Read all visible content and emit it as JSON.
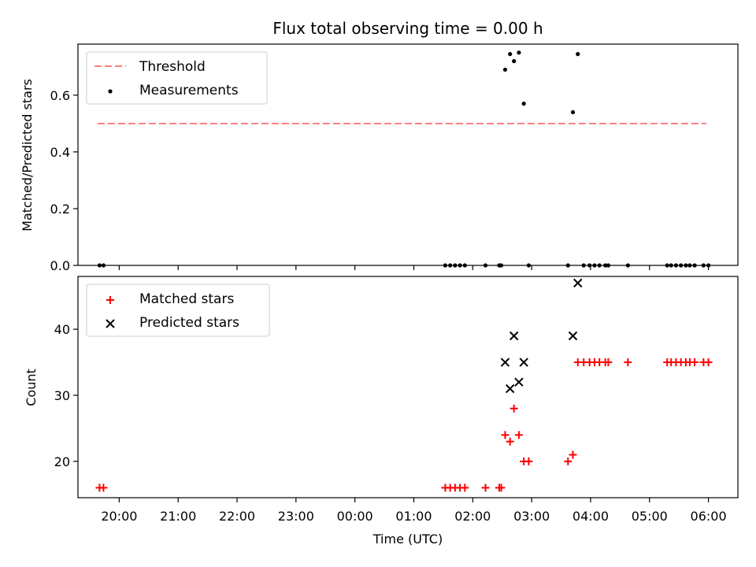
{
  "chart_data": [
    {
      "type": "scatter",
      "title": "Flux total observing time = 0.00 h",
      "ylabel": "Matched/Predicted stars",
      "xlabel": "",
      "xlim": [
        "19:18",
        "06:30"
      ],
      "ylim": [
        0,
        0.78
      ],
      "yticks": [
        0.0,
        0.2,
        0.4,
        0.6
      ],
      "ytick_labels": [
        "0.0",
        "0.2",
        "0.4",
        "0.6"
      ],
      "xticks": [
        "20:00",
        "21:00",
        "22:00",
        "23:00",
        "00:00",
        "01:00",
        "02:00",
        "03:00",
        "04:00",
        "05:00",
        "06:00"
      ],
      "legend": {
        "position": "upper-left",
        "entries": [
          "Threshold",
          "Measurements"
        ]
      },
      "threshold": {
        "name": "Threshold",
        "value": 0.5,
        "x_range": [
          "19:38",
          "05:58"
        ],
        "color": "#ff7f7f"
      },
      "series": [
        {
          "name": "Measurements",
          "marker": "dot",
          "color": "#000000",
          "points": [
            {
              "x": "19:40",
              "y": 0
            },
            {
              "x": "19:44",
              "y": 0
            },
            {
              "x": "01:32",
              "y": 0
            },
            {
              "x": "01:37",
              "y": 0
            },
            {
              "x": "01:42",
              "y": 0
            },
            {
              "x": "01:47",
              "y": 0
            },
            {
              "x": "01:52",
              "y": 0
            },
            {
              "x": "02:13",
              "y": 0
            },
            {
              "x": "02:27",
              "y": 0
            },
            {
              "x": "02:29",
              "y": 0
            },
            {
              "x": "02:33",
              "y": 0.69
            },
            {
              "x": "02:38",
              "y": 0.745
            },
            {
              "x": "02:42",
              "y": 0.72
            },
            {
              "x": "02:47",
              "y": 0.75
            },
            {
              "x": "02:52",
              "y": 0.57
            },
            {
              "x": "02:57",
              "y": 0
            },
            {
              "x": "03:37",
              "y": 0
            },
            {
              "x": "03:42",
              "y": 0.54
            },
            {
              "x": "03:47",
              "y": 0.745
            },
            {
              "x": "03:53",
              "y": 0
            },
            {
              "x": "03:59",
              "y": 0
            },
            {
              "x": "04:04",
              "y": 0
            },
            {
              "x": "04:09",
              "y": 0
            },
            {
              "x": "04:15",
              "y": 0
            },
            {
              "x": "04:18",
              "y": 0
            },
            {
              "x": "04:38",
              "y": 0
            },
            {
              "x": "05:18",
              "y": 0
            },
            {
              "x": "05:22",
              "y": 0
            },
            {
              "x": "05:27",
              "y": 0
            },
            {
              "x": "05:32",
              "y": 0
            },
            {
              "x": "05:37",
              "y": 0
            },
            {
              "x": "05:41",
              "y": 0
            },
            {
              "x": "05:46",
              "y": 0
            },
            {
              "x": "05:55",
              "y": 0
            },
            {
              "x": "06:00",
              "y": 0
            }
          ]
        }
      ]
    },
    {
      "type": "scatter",
      "title": "",
      "ylabel": "Count",
      "xlabel": "Time (UTC)",
      "xlim": [
        "19:18",
        "06:30"
      ],
      "ylim": [
        14.5,
        48
      ],
      "yticks": [
        20,
        30,
        40
      ],
      "ytick_labels": [
        "20",
        "30",
        "40"
      ],
      "xticks": [
        "20:00",
        "21:00",
        "22:00",
        "23:00",
        "00:00",
        "01:00",
        "02:00",
        "03:00",
        "04:00",
        "05:00",
        "06:00"
      ],
      "xtick_labels": [
        "20:00",
        "21:00",
        "22:00",
        "23:00",
        "00:00",
        "01:00",
        "02:00",
        "03:00",
        "04:00",
        "05:00",
        "06:00"
      ],
      "legend": {
        "position": "upper-left",
        "entries": [
          "Matched stars",
          "Predicted stars"
        ]
      },
      "series": [
        {
          "name": "Matched stars",
          "marker": "plus",
          "color": "#ff0000",
          "points": [
            {
              "x": "19:40",
              "y": 16
            },
            {
              "x": "19:44",
              "y": 16
            },
            {
              "x": "01:32",
              "y": 16
            },
            {
              "x": "01:37",
              "y": 16
            },
            {
              "x": "01:42",
              "y": 16
            },
            {
              "x": "01:47",
              "y": 16
            },
            {
              "x": "01:52",
              "y": 16
            },
            {
              "x": "02:13",
              "y": 16
            },
            {
              "x": "02:27",
              "y": 16
            },
            {
              "x": "02:29",
              "y": 16
            },
            {
              "x": "02:33",
              "y": 24
            },
            {
              "x": "02:38",
              "y": 23
            },
            {
              "x": "02:42",
              "y": 28
            },
            {
              "x": "02:47",
              "y": 24
            },
            {
              "x": "02:52",
              "y": 20
            },
            {
              "x": "02:57",
              "y": 20
            },
            {
              "x": "03:37",
              "y": 20
            },
            {
              "x": "03:42",
              "y": 21
            },
            {
              "x": "03:47",
              "y": 35
            },
            {
              "x": "03:53",
              "y": 35
            },
            {
              "x": "03:59",
              "y": 35
            },
            {
              "x": "04:04",
              "y": 35
            },
            {
              "x": "04:09",
              "y": 35
            },
            {
              "x": "04:15",
              "y": 35
            },
            {
              "x": "04:18",
              "y": 35
            },
            {
              "x": "04:38",
              "y": 35
            },
            {
              "x": "05:18",
              "y": 35
            },
            {
              "x": "05:22",
              "y": 35
            },
            {
              "x": "05:27",
              "y": 35
            },
            {
              "x": "05:32",
              "y": 35
            },
            {
              "x": "05:37",
              "y": 35
            },
            {
              "x": "05:41",
              "y": 35
            },
            {
              "x": "05:46",
              "y": 35
            },
            {
              "x": "05:55",
              "y": 35
            },
            {
              "x": "06:00",
              "y": 35
            }
          ]
        },
        {
          "name": "Predicted stars",
          "marker": "x",
          "color": "#000000",
          "points": [
            {
              "x": "02:33",
              "y": 35
            },
            {
              "x": "02:38",
              "y": 31
            },
            {
              "x": "02:42",
              "y": 39
            },
            {
              "x": "02:47",
              "y": 32
            },
            {
              "x": "02:52",
              "y": 35
            },
            {
              "x": "03:42",
              "y": 39
            },
            {
              "x": "03:47",
              "y": 47
            }
          ]
        }
      ]
    }
  ]
}
